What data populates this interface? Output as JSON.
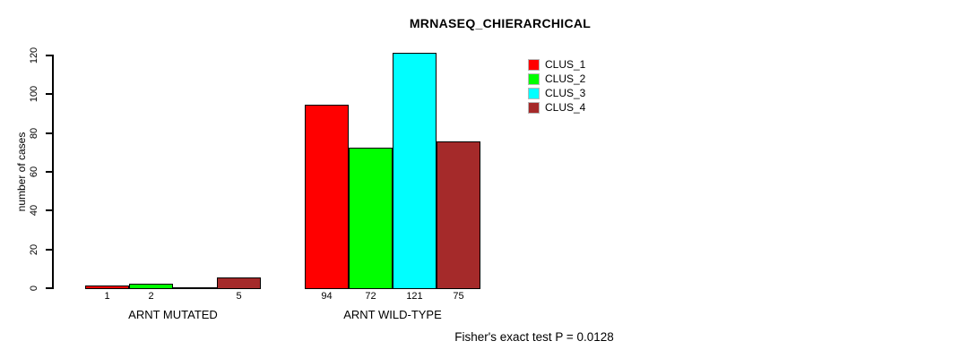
{
  "chart_data": {
    "type": "bar",
    "title": "MRNASEQ_CHIERARCHICAL",
    "ylabel": "number of cases",
    "xlabel": "",
    "ylim": [
      0,
      120
    ],
    "yticks": [
      0,
      20,
      40,
      60,
      80,
      100,
      120
    ],
    "grid": false,
    "legend_position": "top-right",
    "categories": [
      "ARNT MUTATED",
      "ARNT WILD-TYPE"
    ],
    "series": [
      {
        "name": "CLUS_1",
        "color": "#ff0000",
        "values": [
          1,
          94
        ]
      },
      {
        "name": "CLUS_2",
        "color": "#00ff00",
        "values": [
          2,
          72
        ]
      },
      {
        "name": "CLUS_3",
        "color": "#00ffff",
        "values": [
          0,
          121
        ]
      },
      {
        "name": "CLUS_4",
        "color": "#a52a2a",
        "values": [
          5,
          75
        ]
      }
    ],
    "bar_value_labels": [
      [
        "1",
        "2",
        "",
        "5"
      ],
      [
        "94",
        "72",
        "121",
        "75"
      ]
    ],
    "footnote": "Fisher's exact test P = 0.0128"
  }
}
